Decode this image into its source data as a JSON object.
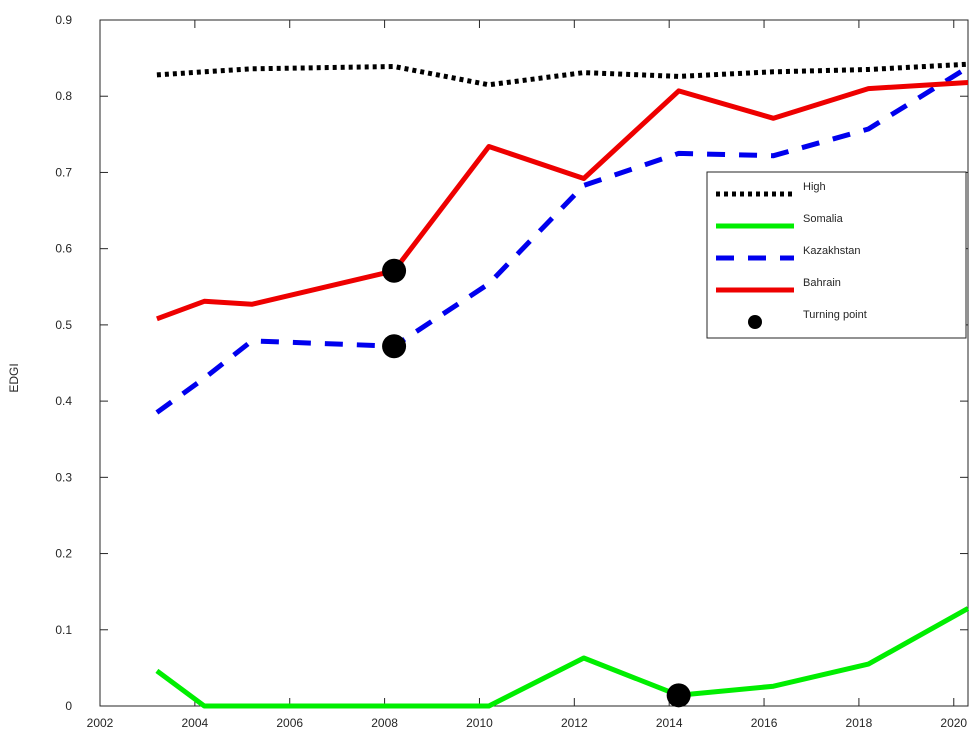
{
  "chart_data": {
    "type": "line",
    "title": "",
    "xlabel": "",
    "ylabel": "EDGI",
    "xlim": [
      2002,
      2020.3
    ],
    "ylim": [
      0,
      0.9
    ],
    "x_ticks": [
      2002,
      2004,
      2006,
      2008,
      2010,
      2012,
      2014,
      2016,
      2018,
      2020
    ],
    "y_ticks": [
      0,
      0.1,
      0.2,
      0.3,
      0.4,
      0.5,
      0.6,
      0.7,
      0.8,
      0.9
    ],
    "y_tick_labels": [
      "0",
      "0.1",
      "0.2",
      "0.3",
      "0.4",
      "0.5",
      "0.6",
      "0.7",
      "0.8",
      "0.9"
    ],
    "grid": false,
    "legend_position": "right",
    "series": [
      {
        "name": "High",
        "color": "#000000",
        "style": "dotted",
        "x": [
          2003.2,
          2004.2,
          2005.2,
          2008.2,
          2010.2,
          2012.2,
          2014.2,
          2016.2,
          2018.2,
          2020.3
        ],
        "y": [
          0.828,
          0.832,
          0.836,
          0.839,
          0.815,
          0.831,
          0.826,
          0.832,
          0.835,
          0.842
        ]
      },
      {
        "name": "Somalia",
        "color": "#00ee00",
        "style": "solid",
        "x": [
          2003.2,
          2004.2,
          2005.2,
          2008.2,
          2010.2,
          2012.2,
          2014.2,
          2016.2,
          2018.2,
          2020.3
        ],
        "y": [
          0.046,
          0.0,
          0.0,
          0.0,
          0.0,
          0.063,
          0.014,
          0.026,
          0.055,
          0.128
        ]
      },
      {
        "name": "Kazakhstan",
        "color": "#0000ee",
        "style": "dashed",
        "x": [
          2003.2,
          2004.2,
          2005.2,
          2008.2,
          2010.2,
          2012.2,
          2014.2,
          2016.2,
          2018.2,
          2020.3
        ],
        "y": [
          0.385,
          0.43,
          0.479,
          0.472,
          0.554,
          0.683,
          0.725,
          0.722,
          0.757,
          0.838
        ]
      },
      {
        "name": "Bahrain",
        "color": "#ee0000",
        "style": "solid",
        "x": [
          2003.2,
          2004.2,
          2005.2,
          2008.2,
          2010.2,
          2012.2,
          2014.2,
          2016.2,
          2018.2,
          2020.3
        ],
        "y": [
          0.508,
          0.531,
          0.527,
          0.571,
          0.734,
          0.692,
          0.807,
          0.771,
          0.81,
          0.818
        ]
      }
    ],
    "turning_points": {
      "name": "Turning point",
      "color": "#000000",
      "points": [
        {
          "x": 2008.2,
          "y": 0.571
        },
        {
          "x": 2008.2,
          "y": 0.472
        },
        {
          "x": 2014.2,
          "y": 0.014
        }
      ]
    }
  }
}
